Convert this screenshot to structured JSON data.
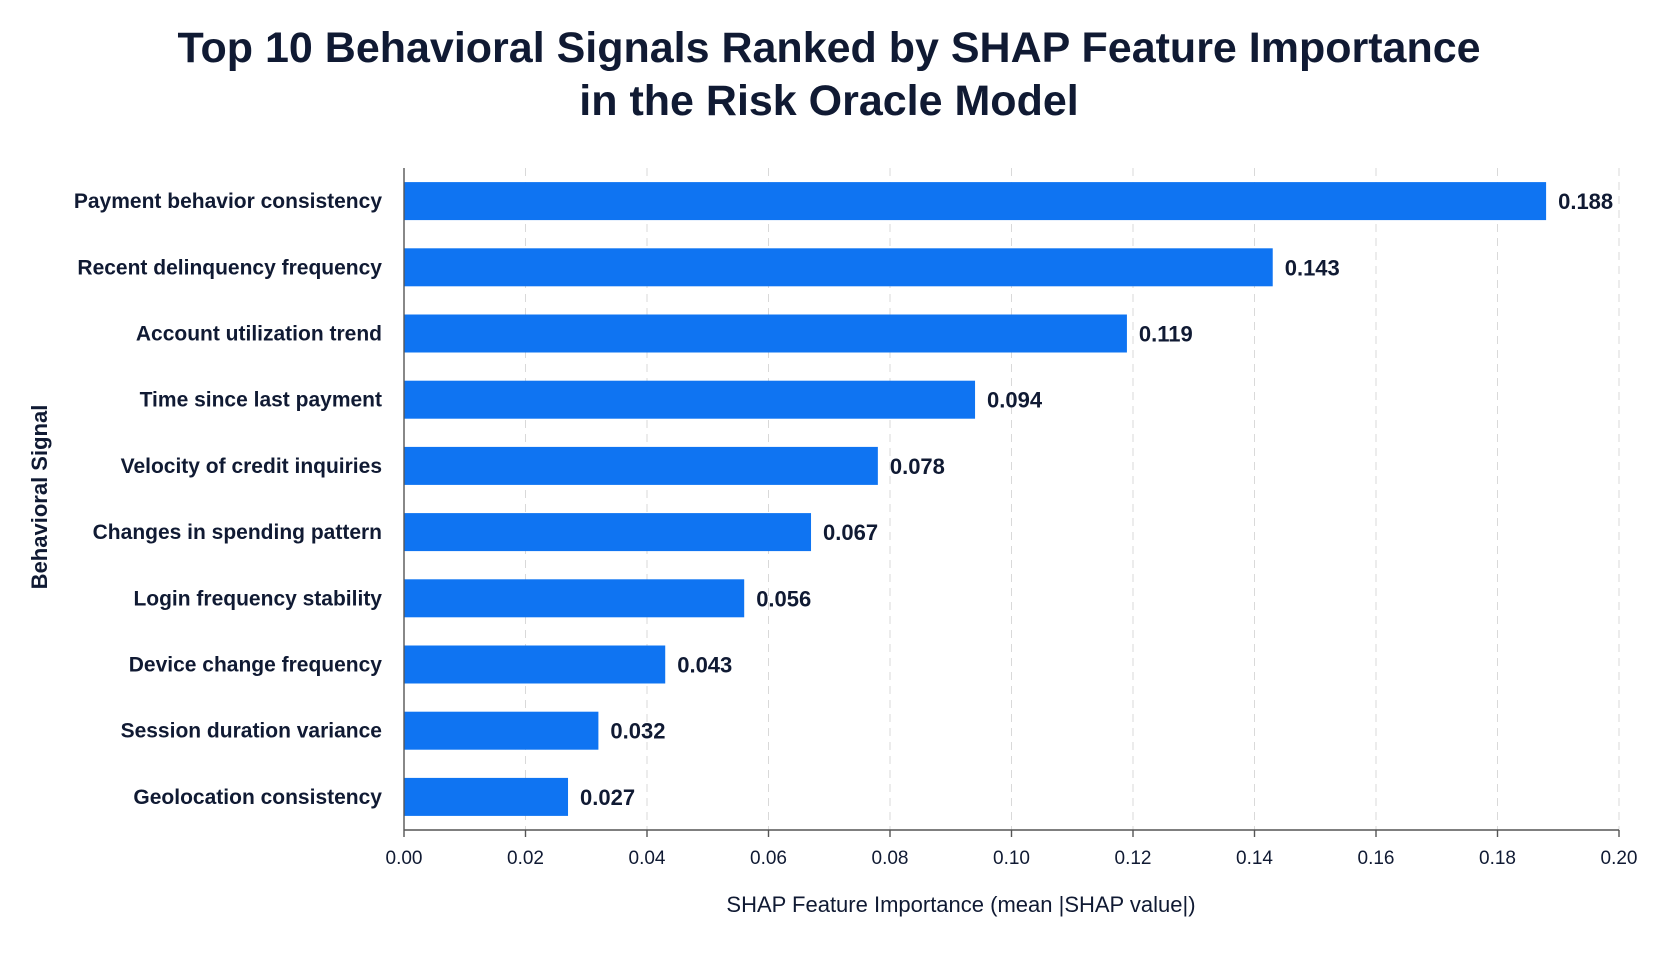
{
  "chart_data": {
    "type": "bar",
    "orientation": "horizontal",
    "title": "Top 10 Behavioral Signals Ranked by SHAP Feature Importance in the Risk Oracle Model",
    "title_lines": [
      "Top 10 Behavioral Signals Ranked by SHAP Feature Importance",
      "in the Risk Oracle Model"
    ],
    "xlabel": "SHAP Feature Importance (mean |SHAP value|)",
    "ylabel": "Behavioral Signal",
    "xlim": [
      0,
      0.2
    ],
    "xticks": [
      0.0,
      0.02,
      0.04,
      0.06,
      0.08,
      0.1,
      0.12,
      0.14,
      0.16,
      0.18,
      0.2
    ],
    "xtick_labels": [
      "0.00",
      "0.02",
      "0.04",
      "0.06",
      "0.08",
      "0.10",
      "0.12",
      "0.14",
      "0.16",
      "0.18",
      "0.20"
    ],
    "grid": "vertical-dashed",
    "bar_color": "#0f74f2",
    "categories": [
      "Payment behavior consistency",
      "Recent delinquency frequency",
      "Account utilization trend",
      "Time since last payment",
      "Velocity of credit inquiries",
      "Changes in spending pattern",
      "Login frequency stability",
      "Device change frequency",
      "Session duration variance",
      "Geolocation consistency"
    ],
    "values": [
      0.188,
      0.143,
      0.119,
      0.094,
      0.078,
      0.067,
      0.056,
      0.043,
      0.032,
      0.027
    ],
    "value_labels": [
      "0.188",
      "0.143",
      "0.119",
      "0.094",
      "0.078",
      "0.067",
      "0.056",
      "0.043",
      "0.032",
      "0.027"
    ]
  }
}
